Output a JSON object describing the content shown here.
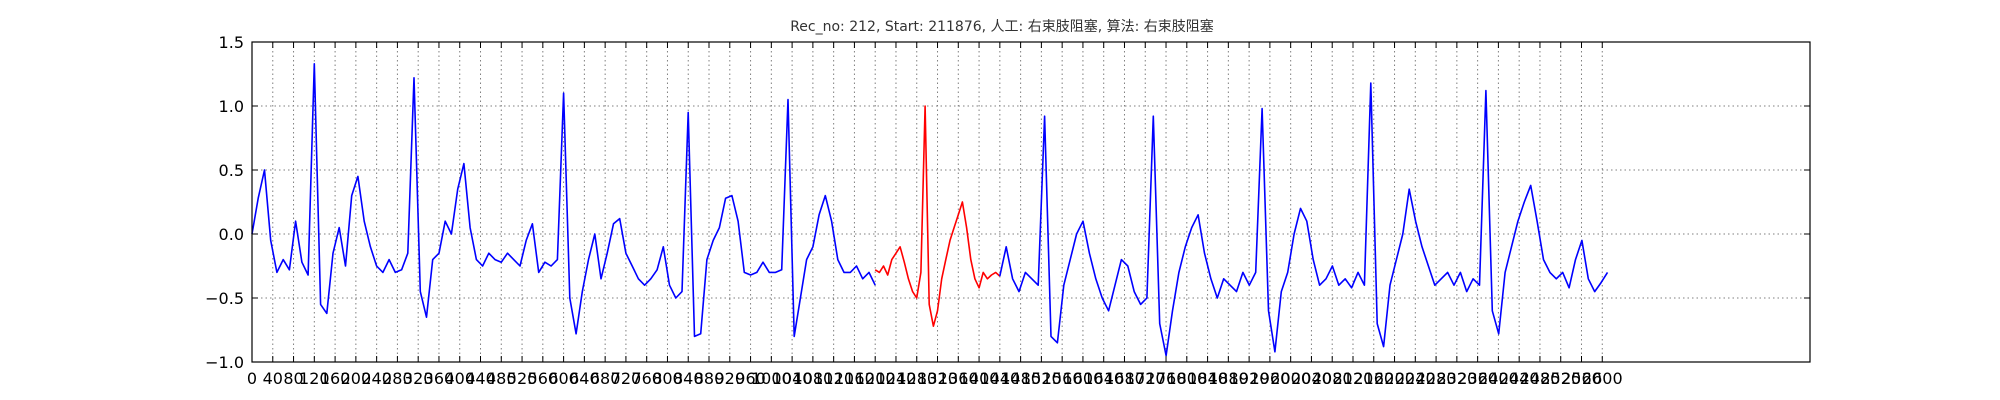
{
  "chart_data": {
    "type": "line",
    "title": "Rec_no: 212, Start: 211876, 人工: 右束肢阻塞, 算法: 右束肢阻塞",
    "xlabel": "",
    "ylabel": "",
    "xlim": [
      0,
      3000
    ],
    "ylim": [
      -1.0,
      1.5
    ],
    "grid": true,
    "x_step": 40,
    "yticks": [
      -1.0,
      -0.5,
      0.0,
      0.5,
      1.0,
      1.5
    ],
    "ytick_labels": [
      "−1.0",
      "−0.5",
      "0.0",
      "0.5",
      "1.0",
      "1.5"
    ],
    "xticks": [
      0,
      40,
      80,
      120,
      160,
      200,
      240,
      280,
      320,
      360,
      400,
      440,
      480,
      520,
      560,
      600,
      640,
      680,
      720,
      760,
      800,
      840,
      880,
      920,
      960,
      1000,
      1040,
      1080,
      1120,
      1160,
      1200,
      1240,
      1280,
      1320,
      1360,
      1400,
      1440,
      1480,
      1520,
      1560,
      1600,
      1640,
      1680,
      1720,
      1760,
      1800,
      1840,
      1880,
      1920,
      1960,
      2000,
      2040,
      2080,
      2120,
      2160,
      2200,
      2240,
      2280,
      2320,
      2360,
      2400,
      2440,
      2480,
      2520,
      2560,
      2600
    ],
    "series": [
      {
        "color": "#0000ff",
        "x_range": [
          0,
          1200
        ],
        "values": [
          0.0,
          0.28,
          0.5,
          -0.05,
          -0.3,
          -0.2,
          -0.28,
          0.1,
          -0.22,
          -0.32,
          1.33,
          -0.55,
          -0.62,
          -0.15,
          0.05,
          -0.25,
          0.3,
          0.45,
          0.1,
          -0.1,
          -0.25,
          -0.3,
          -0.2,
          -0.3,
          -0.28,
          -0.15,
          1.22,
          -0.45,
          -0.65,
          -0.2,
          -0.15,
          0.1,
          0.0,
          0.35,
          0.55,
          0.05,
          -0.2,
          -0.25,
          -0.15,
          -0.2,
          -0.22,
          -0.15,
          -0.2,
          -0.25,
          -0.05,
          0.08,
          -0.3,
          -0.22,
          -0.25,
          -0.2,
          1.1,
          -0.5,
          -0.78,
          -0.45,
          -0.2,
          0.0,
          -0.35,
          -0.15,
          0.08,
          0.12,
          -0.15,
          -0.25,
          -0.35,
          -0.4,
          -0.35,
          -0.28,
          -0.1,
          -0.4,
          -0.5,
          -0.45,
          0.95,
          -0.8,
          -0.78,
          -0.2,
          -0.05,
          0.05,
          0.28,
          0.3,
          0.1,
          -0.3,
          -0.32,
          -0.3,
          -0.22,
          -0.3,
          -0.3,
          -0.28,
          1.05,
          -0.8,
          -0.5,
          -0.2,
          -0.1,
          0.15,
          0.3,
          0.1,
          -0.2,
          -0.3,
          -0.3,
          -0.25,
          -0.35,
          -0.3,
          -0.4
        ]
      },
      {
        "color": "#ff0000",
        "x_range": [
          1200,
          1440
        ],
        "values": [
          -0.28,
          -0.3,
          -0.25,
          -0.32,
          -0.2,
          -0.15,
          -0.1,
          -0.22,
          -0.35,
          -0.45,
          -0.5,
          -0.3,
          1.0,
          -0.55,
          -0.72,
          -0.6,
          -0.35,
          -0.2,
          -0.05,
          0.05,
          0.15,
          0.25,
          0.05,
          -0.2,
          -0.35,
          -0.42,
          -0.3,
          -0.35,
          -0.32,
          -0.3,
          -0.33
        ]
      },
      {
        "color": "#0000ff",
        "x_range": [
          1440,
          2610
        ],
        "values": [
          -0.33,
          -0.1,
          -0.35,
          -0.45,
          -0.3,
          -0.35,
          -0.4,
          0.92,
          -0.8,
          -0.85,
          -0.4,
          -0.2,
          0.0,
          0.1,
          -0.15,
          -0.35,
          -0.5,
          -0.6,
          -0.4,
          -0.2,
          -0.25,
          -0.45,
          -0.55,
          -0.5,
          0.92,
          -0.7,
          -0.95,
          -0.6,
          -0.3,
          -0.1,
          0.05,
          0.15,
          -0.15,
          -0.35,
          -0.5,
          -0.35,
          -0.4,
          -0.45,
          -0.3,
          -0.4,
          -0.3,
          0.98,
          -0.6,
          -0.92,
          -0.45,
          -0.3,
          0.0,
          0.2,
          0.1,
          -0.2,
          -0.4,
          -0.35,
          -0.25,
          -0.4,
          -0.35,
          -0.42,
          -0.3,
          -0.4,
          1.18,
          -0.7,
          -0.88,
          -0.4,
          -0.2,
          0.0,
          0.35,
          0.1,
          -0.1,
          -0.25,
          -0.4,
          -0.35,
          -0.3,
          -0.4,
          -0.3,
          -0.45,
          -0.35,
          -0.4,
          1.12,
          -0.6,
          -0.78,
          -0.3,
          -0.1,
          0.1,
          0.25,
          0.38,
          0.1,
          -0.2,
          -0.3,
          -0.35,
          -0.3,
          -0.42,
          -0.2,
          -0.05,
          -0.35,
          -0.45,
          -0.38,
          -0.3
        ]
      }
    ]
  }
}
